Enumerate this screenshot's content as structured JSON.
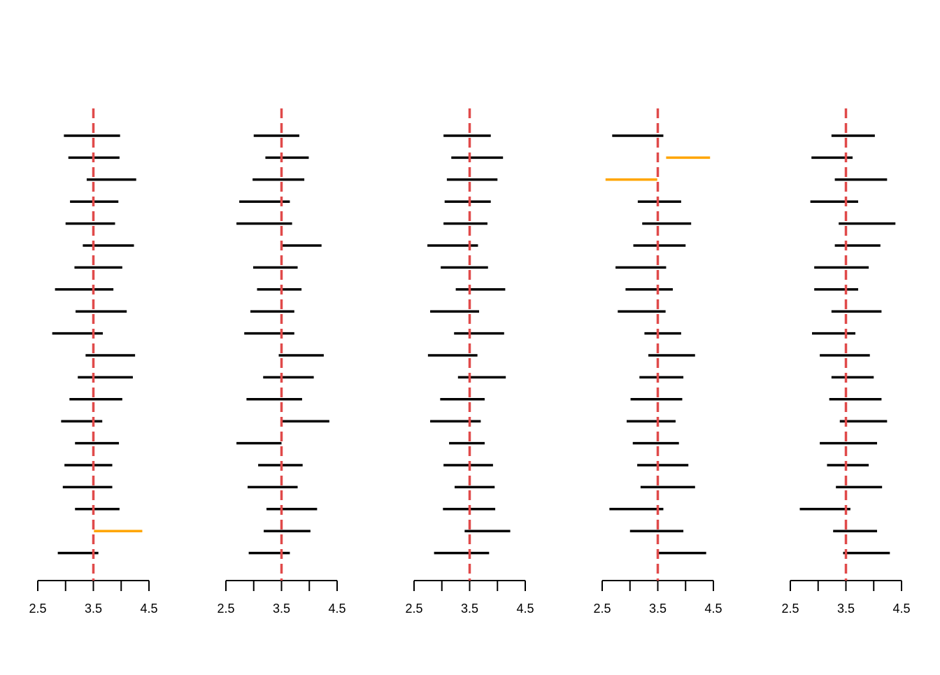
{
  "chart_data": {
    "type": "interval",
    "title": "",
    "xlabel": "",
    "ylabel": "",
    "true_value": 3.5,
    "colors": {
      "covers": "#000000",
      "misses": "#FFA500",
      "reference_line": "#E04A4A"
    },
    "panels": [
      {
        "name": "panel-1",
        "xlim": [
          2.5,
          4.5
        ],
        "ticks": [
          2.5,
          3.0,
          3.5,
          4.0,
          4.5
        ],
        "tick_labels": [
          "2.5",
          "3.5",
          "4.5"
        ],
        "intervals": [
          [
            2.97,
            3.98
          ],
          [
            3.05,
            3.97
          ],
          [
            3.38,
            4.27
          ],
          [
            3.08,
            3.95
          ],
          [
            3.0,
            3.89
          ],
          [
            3.31,
            4.23
          ],
          [
            3.16,
            4.02
          ],
          [
            2.81,
            3.86
          ],
          [
            3.18,
            4.1
          ],
          [
            2.76,
            3.67
          ],
          [
            3.36,
            4.25
          ],
          [
            3.22,
            4.21
          ],
          [
            3.07,
            4.02
          ],
          [
            2.92,
            3.66
          ],
          [
            3.17,
            3.96
          ],
          [
            2.98,
            3.84
          ],
          [
            2.95,
            3.84
          ],
          [
            3.17,
            3.97
          ],
          [
            3.51,
            4.38
          ],
          [
            2.86,
            3.59
          ]
        ]
      },
      {
        "name": "panel-2",
        "xlim": [
          2.5,
          4.5
        ],
        "ticks": [
          2.5,
          3.0,
          3.5,
          4.0,
          4.5
        ],
        "tick_labels": [
          "2.5",
          "3.5",
          "4.5"
        ],
        "intervals": [
          [
            3.0,
            3.82
          ],
          [
            3.21,
            3.99
          ],
          [
            2.98,
            3.91
          ],
          [
            2.74,
            3.65
          ],
          [
            2.69,
            3.69
          ],
          [
            3.5,
            4.22
          ],
          [
            2.99,
            3.79
          ],
          [
            3.06,
            3.86
          ],
          [
            2.94,
            3.73
          ],
          [
            2.83,
            3.73
          ],
          [
            3.45,
            4.26
          ],
          [
            3.17,
            4.08
          ],
          [
            2.87,
            3.87
          ],
          [
            3.5,
            4.36
          ],
          [
            2.69,
            3.5
          ],
          [
            3.08,
            3.88
          ],
          [
            2.89,
            3.79
          ],
          [
            3.23,
            4.14
          ],
          [
            3.18,
            4.02
          ],
          [
            2.91,
            3.65
          ]
        ]
      },
      {
        "name": "panel-3",
        "xlim": [
          2.5,
          4.5
        ],
        "ticks": [
          2.5,
          3.0,
          3.5,
          4.0,
          4.5
        ],
        "tick_labels": [
          "2.5",
          "3.5",
          "4.5"
        ],
        "intervals": [
          [
            3.03,
            3.88
          ],
          [
            3.17,
            4.1
          ],
          [
            3.09,
            4.0
          ],
          [
            3.05,
            3.88
          ],
          [
            3.03,
            3.82
          ],
          [
            2.74,
            3.65
          ],
          [
            2.98,
            3.83
          ],
          [
            3.25,
            4.14
          ],
          [
            2.79,
            3.67
          ],
          [
            3.22,
            4.12
          ],
          [
            2.75,
            3.64
          ],
          [
            3.29,
            4.15
          ],
          [
            2.97,
            3.77
          ],
          [
            2.79,
            3.7
          ],
          [
            3.13,
            3.77
          ],
          [
            3.03,
            3.92
          ],
          [
            3.23,
            3.95
          ],
          [
            3.02,
            3.96
          ],
          [
            3.41,
            4.23
          ],
          [
            2.86,
            3.85
          ]
        ]
      },
      {
        "name": "panel-4",
        "xlim": [
          2.5,
          4.5
        ],
        "ticks": [
          2.5,
          3.0,
          3.5,
          4.0,
          4.5
        ],
        "tick_labels": [
          "2.5",
          "3.5",
          "4.5"
        ],
        "intervals": [
          [
            2.68,
            3.6
          ],
          [
            3.65,
            4.44
          ],
          [
            2.56,
            3.49
          ],
          [
            3.14,
            3.92
          ],
          [
            3.22,
            4.1
          ],
          [
            3.06,
            4.0
          ],
          [
            2.74,
            3.65
          ],
          [
            2.92,
            3.77
          ],
          [
            2.78,
            3.64
          ],
          [
            3.26,
            3.92
          ],
          [
            3.33,
            4.17
          ],
          [
            3.17,
            3.96
          ],
          [
            3.01,
            3.94
          ],
          [
            2.94,
            3.82
          ],
          [
            3.05,
            3.88
          ],
          [
            3.13,
            4.05
          ],
          [
            3.19,
            4.17
          ],
          [
            2.63,
            3.6
          ],
          [
            3.0,
            3.96
          ],
          [
            3.48,
            4.37
          ]
        ]
      },
      {
        "name": "panel-5",
        "xlim": [
          2.5,
          4.5
        ],
        "ticks": [
          2.5,
          3.0,
          3.5,
          4.0,
          4.5
        ],
        "tick_labels": [
          "2.5",
          "3.5",
          "4.5"
        ],
        "intervals": [
          [
            3.24,
            4.02
          ],
          [
            2.88,
            3.62
          ],
          [
            3.3,
            4.24
          ],
          [
            2.86,
            3.72
          ],
          [
            3.37,
            4.39
          ],
          [
            3.3,
            4.12
          ],
          [
            2.93,
            3.91
          ],
          [
            2.93,
            3.72
          ],
          [
            3.24,
            4.14
          ],
          [
            2.89,
            3.67
          ],
          [
            3.03,
            3.93
          ],
          [
            3.24,
            4.0
          ],
          [
            3.2,
            4.14
          ],
          [
            3.39,
            4.24
          ],
          [
            3.03,
            4.06
          ],
          [
            3.16,
            3.91
          ],
          [
            3.32,
            4.15
          ],
          [
            2.67,
            3.58
          ],
          [
            3.27,
            4.06
          ],
          [
            3.45,
            4.29
          ]
        ]
      }
    ]
  }
}
